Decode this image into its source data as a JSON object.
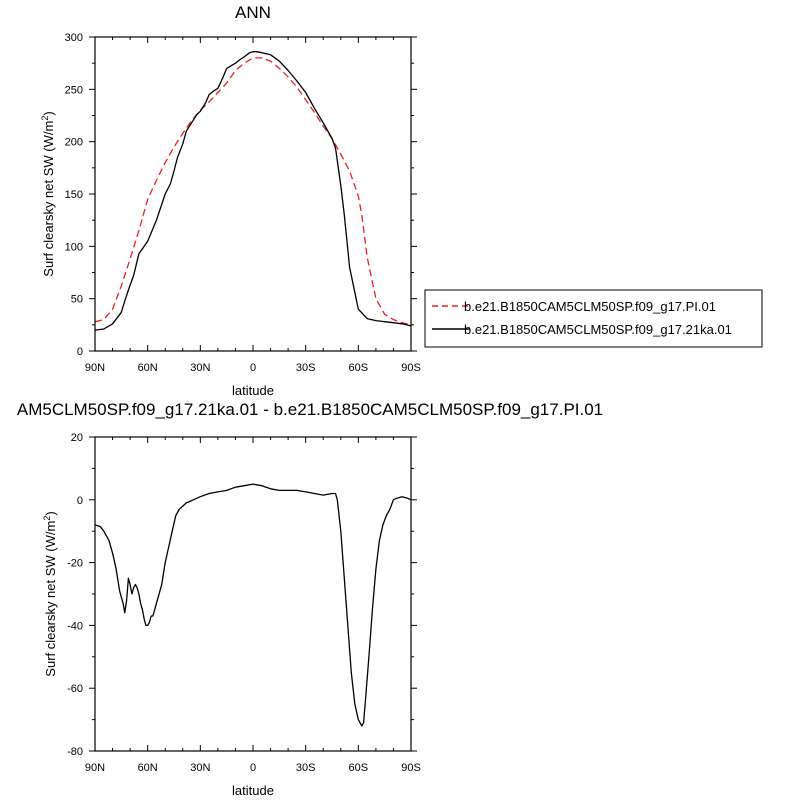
{
  "figure_title": "ANN",
  "diff_title": "AM5CLM50SP.f09_g17.21ka.01 - b.e21.B1850CAM5CLM50SP.f09_g17.PI.01",
  "colors": {
    "control": "#e8201f",
    "experiment": "#000000"
  },
  "chart_data": [
    {
      "type": "line",
      "title": "ANN",
      "xlabel": "latitude",
      "ylabel_main": "Surf clearsky net SW (W/m",
      "ylabel_sup": "2",
      "ylabel_tail": ")",
      "xlim": [
        90,
        -90
      ],
      "ylim": [
        0,
        300
      ],
      "x_ticks": [
        90,
        60,
        30,
        0,
        -30,
        -60,
        -90
      ],
      "x_tick_labels": [
        "90N",
        "60N",
        "30N",
        "0",
        "30S",
        "60S",
        "90S"
      ],
      "y_ticks": [
        0,
        50,
        100,
        150,
        200,
        250,
        300
      ],
      "y_tick_labels": [
        "0",
        "50",
        "100",
        "150",
        "200",
        "250",
        "300"
      ],
      "legend_position": "right",
      "series": [
        {
          "name": "b.e21.B1850CAM5CLM50SP.f09_g17.PI.01",
          "style": "dashed",
          "color": "#e8201f",
          "x": [
            90,
            85,
            80,
            75,
            70,
            65,
            60,
            55,
            50,
            45,
            40,
            35,
            30,
            25,
            20,
            15,
            10,
            5,
            0,
            -5,
            -10,
            -15,
            -20,
            -25,
            -30,
            -35,
            -40,
            -45,
            -50,
            -55,
            -60,
            -62,
            -65,
            -70,
            -75,
            -80,
            -85,
            -90
          ],
          "y": [
            28,
            30,
            40,
            62,
            88,
            115,
            145,
            163,
            180,
            195,
            208,
            220,
            230,
            238,
            247,
            256,
            268,
            275,
            280,
            280,
            277,
            270,
            262,
            252,
            240,
            228,
            215,
            203,
            188,
            172,
            148,
            130,
            90,
            50,
            35,
            30,
            27,
            25
          ]
        },
        {
          "name": "b.e21.B1850CAM5CLM50SP.f09_g17.21ka.01",
          "style": "solid",
          "color": "#000000",
          "x": [
            90,
            85,
            80,
            75,
            73,
            70,
            68,
            65,
            62,
            60,
            58,
            55,
            52,
            50,
            47,
            45,
            43,
            40,
            38,
            35,
            32,
            30,
            27,
            25,
            22,
            20,
            17,
            15,
            12,
            10,
            7,
            5,
            2,
            0,
            -2,
            -5,
            -10,
            -15,
            -20,
            -25,
            -30,
            -35,
            -40,
            -45,
            -47,
            -50,
            -52,
            -55,
            -60,
            -65,
            -70,
            -75,
            -80,
            -85,
            -90
          ],
          "y": [
            20,
            21,
            26,
            37,
            48,
            63,
            72,
            93,
            100,
            105,
            113,
            125,
            140,
            150,
            160,
            172,
            185,
            198,
            210,
            218,
            226,
            229,
            237,
            245,
            249,
            251,
            262,
            270,
            273,
            275,
            279,
            281,
            285,
            286,
            286,
            285,
            283,
            277,
            268,
            258,
            247,
            232,
            218,
            203,
            194,
            158,
            130,
            80,
            40,
            31,
            29,
            28,
            27,
            26,
            24
          ]
        }
      ]
    },
    {
      "type": "line",
      "title": "AM5CLM50SP.f09_g17.21ka.01 - b.e21.B1850CAM5CLM50SP.f09_g17.PI.01",
      "xlabel": "latitude",
      "ylabel_main": "Surf clearsky net SW (W/m",
      "ylabel_sup": "2",
      "ylabel_tail": ")",
      "xlim": [
        90,
        -90
      ],
      "ylim": [
        -80,
        20
      ],
      "x_ticks": [
        90,
        60,
        30,
        0,
        -30,
        -60,
        -90
      ],
      "x_tick_labels": [
        "90N",
        "60N",
        "30N",
        "0",
        "30S",
        "60S",
        "90S"
      ],
      "y_ticks": [
        -80,
        -60,
        -40,
        -20,
        0,
        20
      ],
      "y_tick_labels": [
        "-80",
        "-60",
        "-40",
        "-20",
        "0",
        "20"
      ],
      "series": [
        {
          "style": "solid",
          "color": "#000000",
          "x": [
            90,
            87,
            85,
            82,
            80,
            78,
            76,
            74,
            73,
            72,
            71,
            70,
            69,
            68,
            67,
            66,
            65,
            64,
            63,
            62,
            61,
            60,
            59,
            58,
            57,
            56,
            55,
            54,
            52,
            50,
            48,
            46,
            44,
            42,
            40,
            38,
            36,
            34,
            30,
            25,
            20,
            15,
            10,
            5,
            0,
            -5,
            -10,
            -15,
            -20,
            -25,
            -30,
            -35,
            -40,
            -45,
            -47,
            -48,
            -50,
            -52,
            -54,
            -56,
            -58,
            -60,
            -62,
            -63,
            -64,
            -66,
            -68,
            -70,
            -72,
            -74,
            -76,
            -78,
            -80,
            -82,
            -85,
            -88,
            -90
          ],
          "y": [
            -8,
            -8.5,
            -10,
            -13,
            -17,
            -22,
            -29,
            -33,
            -36,
            -32,
            -25,
            -27,
            -30,
            -28,
            -27,
            -28,
            -30,
            -33,
            -35,
            -38,
            -40,
            -40,
            -39,
            -37,
            -37,
            -35,
            -33,
            -31,
            -27,
            -20,
            -15,
            -10,
            -5,
            -3,
            -2,
            -1,
            -0.5,
            0,
            1,
            2,
            2.5,
            3,
            4,
            4.5,
            5,
            4.5,
            3.5,
            3,
            3,
            3,
            2.5,
            2,
            1.5,
            2,
            2,
            0,
            -10,
            -25,
            -40,
            -55,
            -65,
            -70,
            -72,
            -71,
            -64,
            -50,
            -35,
            -22,
            -13,
            -8,
            -5,
            -3,
            0,
            0.5,
            1,
            0.5,
            0
          ]
        }
      ]
    }
  ]
}
